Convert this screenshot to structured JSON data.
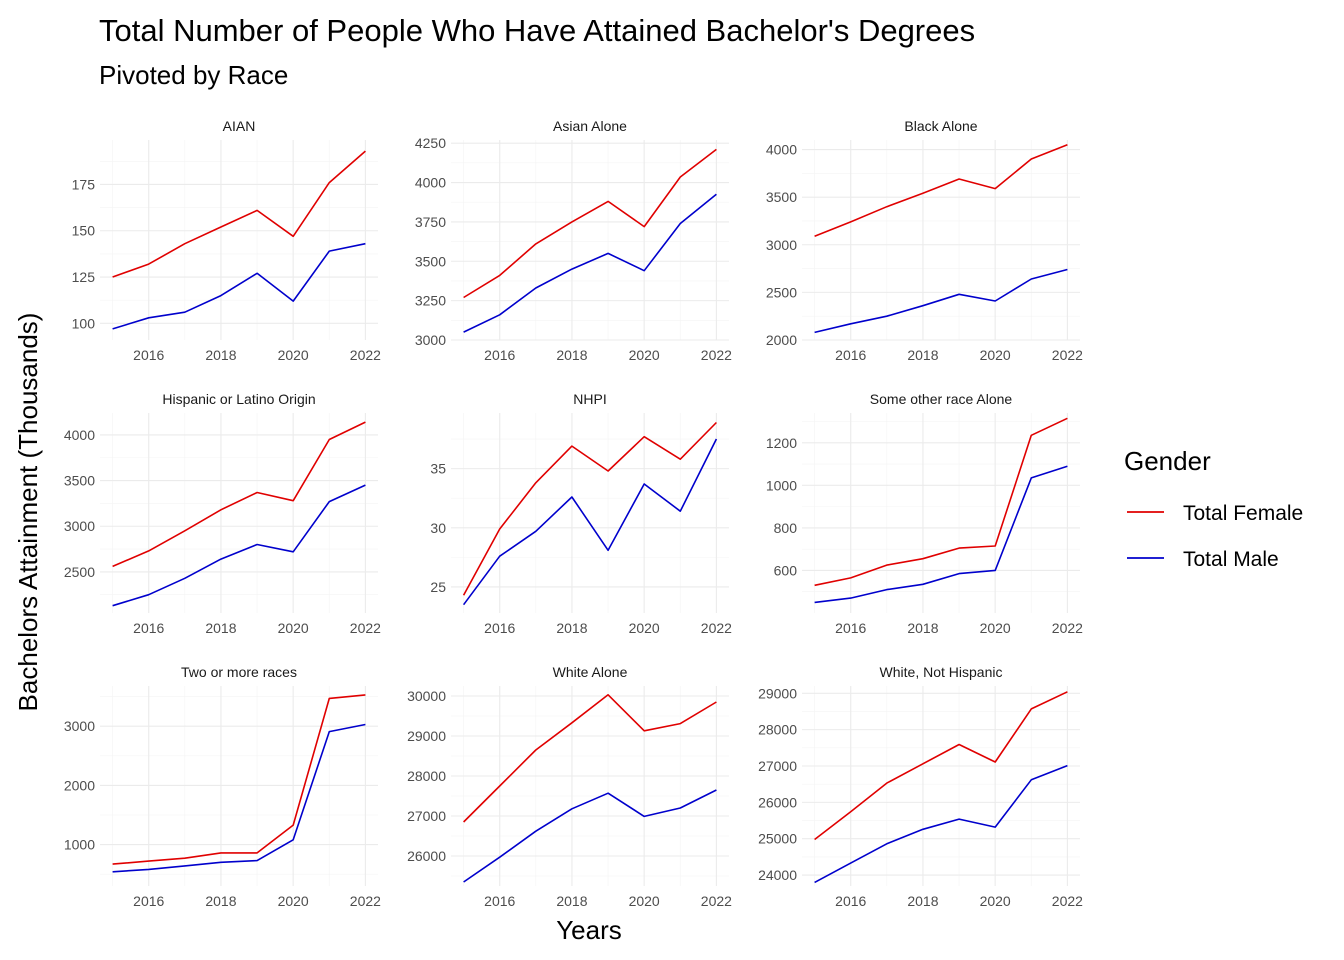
{
  "title": "Total Number of People Who Have Attained Bachelor's Degrees",
  "subtitle": "Pivoted by Race",
  "xlabel": "Years",
  "ylabel": "Bachelors Attainment (Thousands)",
  "legend": {
    "title": "Gender",
    "placement": "right",
    "items": [
      {
        "label": "Total Female",
        "color": "#e00000"
      },
      {
        "label": "Total Male",
        "color": "#0000cc"
      }
    ]
  },
  "chart_data": [
    {
      "type": "line",
      "title": "AIAN",
      "x": [
        2015,
        2016,
        2017,
        2018,
        2019,
        2020,
        2021,
        2022
      ],
      "xticks": [
        2016,
        2018,
        2020,
        2022
      ],
      "ylim": [
        91,
        199
      ],
      "yticks": [
        100,
        125,
        150,
        175
      ],
      "series": [
        {
          "name": "Total Female",
          "color": "#e00000",
          "values": [
            125,
            132,
            143,
            152,
            161,
            147,
            176,
            193
          ]
        },
        {
          "name": "Total Male",
          "color": "#0000cc",
          "values": [
            97,
            103,
            106,
            115,
            127,
            112,
            139,
            143
          ]
        }
      ]
    },
    {
      "type": "line",
      "title": "Asian Alone",
      "x": [
        2015,
        2016,
        2017,
        2018,
        2019,
        2020,
        2021,
        2022
      ],
      "xticks": [
        2016,
        2018,
        2020,
        2022
      ],
      "ylim": [
        3000,
        4270
      ],
      "yticks": [
        3000,
        3250,
        3500,
        3750,
        4000,
        4250
      ],
      "series": [
        {
          "name": "Total Female",
          "color": "#e00000",
          "values": [
            3270,
            3410,
            3610,
            3750,
            3880,
            3720,
            4035,
            4210
          ]
        },
        {
          "name": "Total Male",
          "color": "#0000cc",
          "values": [
            3050,
            3160,
            3330,
            3450,
            3550,
            3440,
            3740,
            3925
          ]
        }
      ]
    },
    {
      "type": "line",
      "title": "Black Alone",
      "x": [
        2015,
        2016,
        2017,
        2018,
        2019,
        2020,
        2021,
        2022
      ],
      "xticks": [
        2016,
        2018,
        2020,
        2022
      ],
      "ylim": [
        2000,
        4100
      ],
      "yticks": [
        2000,
        2500,
        3000,
        3500,
        4000
      ],
      "series": [
        {
          "name": "Total Female",
          "color": "#e00000",
          "values": [
            3090,
            3240,
            3400,
            3540,
            3690,
            3590,
            3900,
            4050
          ]
        },
        {
          "name": "Total Male",
          "color": "#0000cc",
          "values": [
            2080,
            2170,
            2250,
            2360,
            2480,
            2410,
            2640,
            2740
          ]
        }
      ]
    },
    {
      "type": "line",
      "title": "Hispanic or Latino Origin",
      "x": [
        2015,
        2016,
        2017,
        2018,
        2019,
        2020,
        2021,
        2022
      ],
      "xticks": [
        2016,
        2018,
        2020,
        2022
      ],
      "ylim": [
        2050,
        4240
      ],
      "yticks": [
        2500,
        3000,
        3500,
        4000
      ],
      "series": [
        {
          "name": "Total Female",
          "color": "#e00000",
          "values": [
            2560,
            2730,
            2950,
            3180,
            3370,
            3280,
            3950,
            4140
          ]
        },
        {
          "name": "Total Male",
          "color": "#0000cc",
          "values": [
            2130,
            2250,
            2430,
            2640,
            2800,
            2720,
            3270,
            3450
          ]
        }
      ]
    },
    {
      "type": "line",
      "title": "NHPI",
      "x": [
        2015,
        2016,
        2017,
        2018,
        2019,
        2020,
        2021,
        2022
      ],
      "xticks": [
        2016,
        2018,
        2020,
        2022
      ],
      "ylim": [
        22.8,
        39.7
      ],
      "yticks": [
        25,
        30,
        35
      ],
      "series": [
        {
          "name": "Total Female",
          "color": "#e00000",
          "values": [
            24.3,
            29.9,
            33.8,
            36.9,
            34.8,
            37.7,
            35.8,
            38.9
          ]
        },
        {
          "name": "Total Male",
          "color": "#0000cc",
          "values": [
            23.5,
            27.6,
            29.7,
            32.6,
            28.1,
            33.7,
            31.4,
            37.5
          ]
        }
      ]
    },
    {
      "type": "line",
      "title": "Some other race Alone",
      "x": [
        2015,
        2016,
        2017,
        2018,
        2019,
        2020,
        2021,
        2022
      ],
      "xticks": [
        2016,
        2018,
        2020,
        2022
      ],
      "ylim": [
        400,
        1340
      ],
      "yticks": [
        600,
        800,
        1000,
        1200
      ],
      "series": [
        {
          "name": "Total Female",
          "color": "#e00000",
          "values": [
            530,
            565,
            625,
            655,
            705,
            715,
            1235,
            1315
          ]
        },
        {
          "name": "Total Male",
          "color": "#0000cc",
          "values": [
            450,
            470,
            510,
            535,
            585,
            600,
            1035,
            1090
          ]
        }
      ]
    },
    {
      "type": "line",
      "title": "Two or more races",
      "x": [
        2015,
        2016,
        2017,
        2018,
        2019,
        2020,
        2021,
        2022
      ],
      "xticks": [
        2016,
        2018,
        2020,
        2022
      ],
      "ylim": [
        300,
        3680
      ],
      "yticks": [
        1000,
        2000,
        3000
      ],
      "series": [
        {
          "name": "Total Female",
          "color": "#e00000",
          "values": [
            670,
            720,
            770,
            860,
            860,
            1330,
            3470,
            3530
          ]
        },
        {
          "name": "Total Male",
          "color": "#0000cc",
          "values": [
            540,
            580,
            640,
            700,
            730,
            1080,
            2910,
            3030
          ]
        }
      ]
    },
    {
      "type": "line",
      "title": "White Alone",
      "x": [
        2015,
        2016,
        2017,
        2018,
        2019,
        2020,
        2021,
        2022
      ],
      "xticks": [
        2016,
        2018,
        2020,
        2022
      ],
      "ylim": [
        25250,
        30250
      ],
      "yticks": [
        26000,
        27000,
        28000,
        29000,
        30000
      ],
      "series": [
        {
          "name": "Total Female",
          "color": "#e00000",
          "values": [
            26850,
            27750,
            28650,
            29330,
            30030,
            29130,
            29310,
            29850
          ]
        },
        {
          "name": "Total Male",
          "color": "#0000cc",
          "values": [
            25350,
            25970,
            26620,
            27180,
            27570,
            26990,
            27200,
            27650
          ]
        }
      ]
    },
    {
      "type": "line",
      "title": "White, Not Hispanic",
      "x": [
        2015,
        2016,
        2017,
        2018,
        2019,
        2020,
        2021,
        2022
      ],
      "xticks": [
        2016,
        2018,
        2020,
        2022
      ],
      "ylim": [
        23700,
        29200
      ],
      "yticks": [
        24000,
        25000,
        26000,
        27000,
        28000,
        29000
      ],
      "series": [
        {
          "name": "Total Female",
          "color": "#e00000",
          "values": [
            24980,
            25740,
            26530,
            27060,
            27590,
            27110,
            28570,
            29040
          ]
        },
        {
          "name": "Total Male",
          "color": "#0000cc",
          "values": [
            23800,
            24330,
            24860,
            25260,
            25540,
            25320,
            26620,
            27010
          ]
        }
      ]
    }
  ]
}
